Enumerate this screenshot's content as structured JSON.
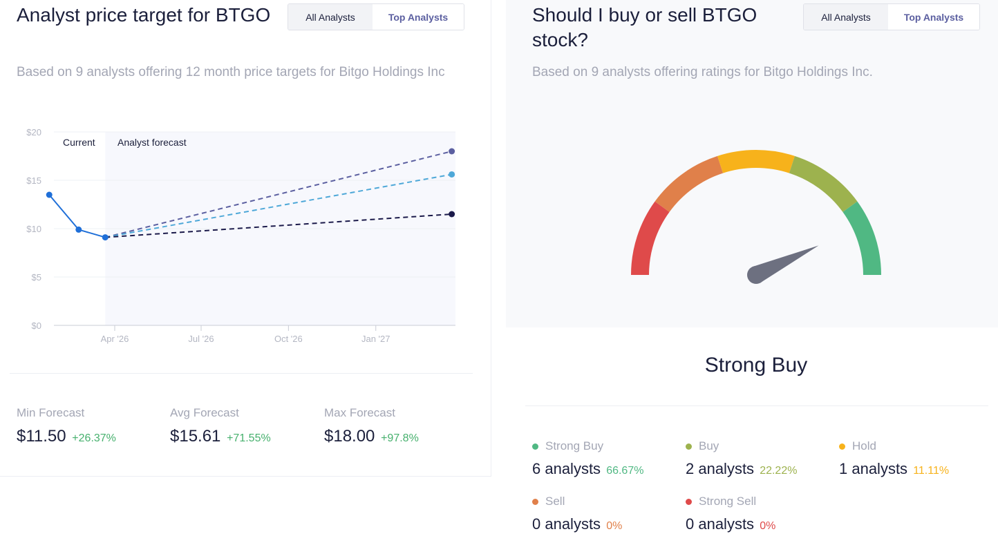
{
  "left": {
    "title": "Analyst price target for BTGO",
    "toggle": {
      "all": "All Analysts",
      "top": "Top Analysts"
    },
    "subtitle": "Based on 9 analysts offering 12 month price targets for Bitgo Holdings Inc",
    "forecasts": [
      {
        "label": "Min Forecast",
        "value": "$11.50",
        "pct": "+26.37%"
      },
      {
        "label": "Avg Forecast",
        "value": "$15.61",
        "pct": "+71.55%"
      },
      {
        "label": "Max Forecast",
        "value": "$18.00",
        "pct": "+97.8%"
      }
    ]
  },
  "chart_data": {
    "type": "line",
    "region_labels": {
      "current": "Current",
      "forecast": "Analyst forecast"
    },
    "ylim": [
      0,
      20
    ],
    "y_ticks": [
      "$0",
      "$5",
      "$10",
      "$15",
      "$20"
    ],
    "x_ticks": [
      "Apr '26",
      "Jul '26",
      "Oct '26",
      "Jan '27"
    ],
    "history": [
      {
        "x": "2026-01-22",
        "y": 13.5
      },
      {
        "x": "2026-02-22",
        "y": 9.9
      },
      {
        "x": "2026-03-22",
        "y": 9.1
      }
    ],
    "forecast_start": {
      "x": "2026-03-22",
      "y": 9.1
    },
    "forecast_end_date": "2027-03-22",
    "targets": [
      {
        "y": 18.0,
        "color": "#5b5fa0"
      },
      {
        "y": 15.61,
        "color": "#4ea8d8"
      },
      {
        "y": 11.5,
        "color": "#1b1a4a"
      }
    ],
    "history_color": "#1f6fd8",
    "grid": true
  },
  "right": {
    "title": "Should I buy or sell BTGO stock?",
    "toggle": {
      "all": "All Analysts",
      "top": "Top Analysts"
    },
    "subtitle": "Based on 9 analysts offering ratings for Bitgo Holdings Inc.",
    "verdict": "Strong Buy",
    "gauge": {
      "segment_colors": [
        "#df4a4a",
        "#e0804a",
        "#f7b21b",
        "#9db24e",
        "#50b883"
      ],
      "needle_color": "#6d7080",
      "needle_level": 0.86
    },
    "ratings": [
      {
        "label": "Strong Buy",
        "count": "6 analysts",
        "pct": "66.67%",
        "color": "#50b883"
      },
      {
        "label": "Buy",
        "count": "2 analysts",
        "pct": "22.22%",
        "color": "#9db24e"
      },
      {
        "label": "Hold",
        "count": "1 analysts",
        "pct": "11.11%",
        "color": "#f7b21b"
      },
      {
        "label": "Sell",
        "count": "0 analysts",
        "pct": "0%",
        "color": "#e0804a"
      },
      {
        "label": "Strong Sell",
        "count": "0 analysts",
        "pct": "0%",
        "color": "#df4a4a"
      }
    ]
  }
}
